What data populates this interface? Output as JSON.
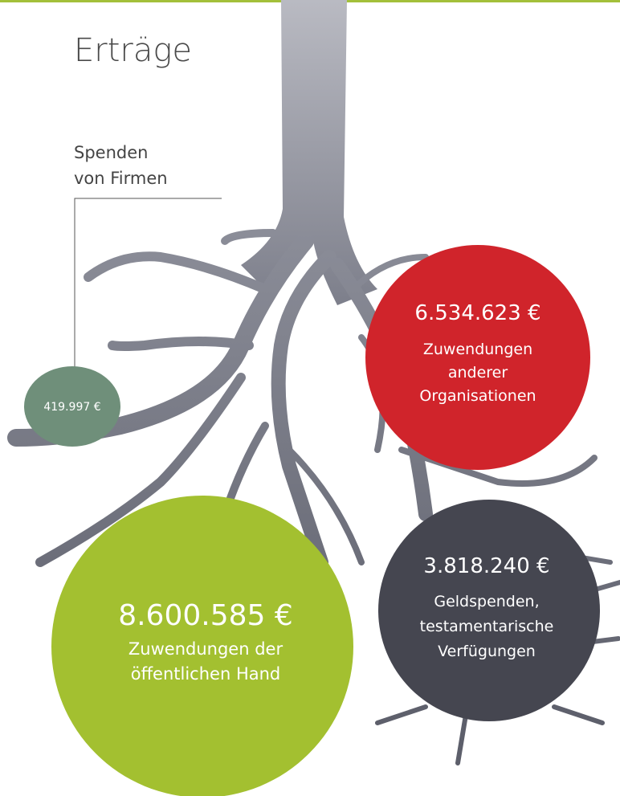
{
  "title": "Erträge",
  "items": [
    {
      "amount": "419.997 €",
      "label": [
        "Spenden",
        "von Firmen"
      ]
    },
    {
      "amount": "6.534.623 €",
      "label": [
        "Zuwendungen",
        "anderer",
        "Organisationen"
      ]
    },
    {
      "amount": "3.818.240 €",
      "label": [
        "Geldspenden,",
        "testamentarische",
        "Verfügungen"
      ]
    },
    {
      "amount": "8.600.585 €",
      "label": [
        "Zuwendungen der",
        "öffentlichen Hand"
      ]
    }
  ]
}
